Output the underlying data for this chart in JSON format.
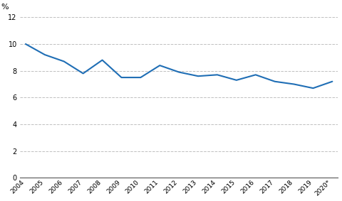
{
  "years": [
    "2004",
    "2005",
    "2006",
    "2007",
    "2008",
    "2009",
    "2010",
    "2011",
    "2012",
    "2013",
    "2014",
    "2015",
    "2016",
    "2017",
    "2018",
    "2019",
    "2020*"
  ],
  "values": [
    10.0,
    9.2,
    8.7,
    7.8,
    8.8,
    7.5,
    7.5,
    8.4,
    7.9,
    7.6,
    7.7,
    7.3,
    7.7,
    7.2,
    7.0,
    6.7,
    7.2
  ],
  "line_color": "#1f6eb5",
  "line_width": 1.5,
  "ylim": [
    0,
    12
  ],
  "yticks": [
    0,
    2,
    4,
    6,
    8,
    10,
    12
  ],
  "percent_label": "%",
  "grid_color": "#c0c0c0",
  "grid_linestyle": "--",
  "background_color": "#ffffff"
}
